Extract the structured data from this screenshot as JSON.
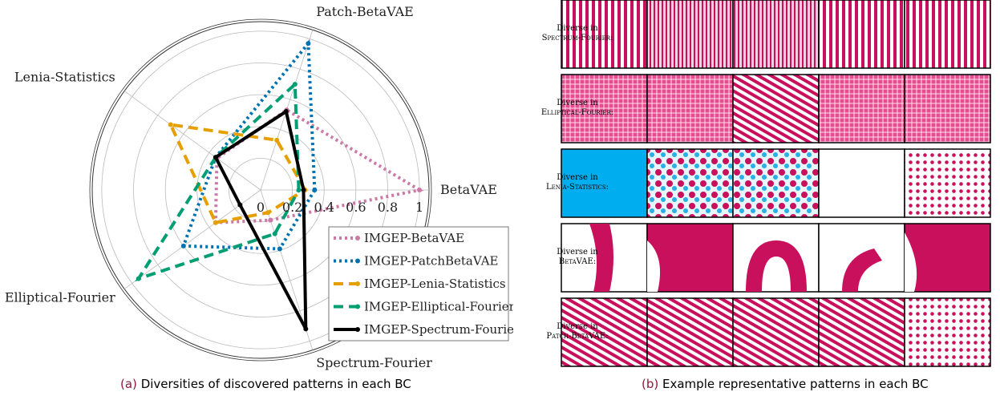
{
  "chart_data": {
    "type": "radar",
    "categories": [
      "BetaVAE",
      "Patch-BetaVAE",
      "Lenia-Statistics",
      "Elliptical-Fourier",
      "Spectrum-Fourier"
    ],
    "rlim": [
      0,
      1.06
    ],
    "rticks": [
      0,
      0.2,
      0.4,
      0.6,
      0.8,
      1
    ],
    "grid": true,
    "legend": "lower right",
    "series": [
      {
        "name": "IMGEP-BetaVAE",
        "color": "#cc79a7",
        "linestyle": "dotted",
        "values": [
          1.0,
          0.53,
          0.34,
          0.35,
          0.2
        ]
      },
      {
        "name": "IMGEP-PatchBetaVAE",
        "color": "#0072b2",
        "linestyle": "dotted",
        "values": [
          0.34,
          0.97,
          0.35,
          0.6,
          0.39
        ]
      },
      {
        "name": "IMGEP-Lenia-Statistics",
        "color": "#e69f00",
        "linestyle": "dashed",
        "values": [
          0.28,
          0.33,
          0.7,
          0.35,
          0.15
        ]
      },
      {
        "name": "IMGEP-Elliptical-Fourier",
        "color": "#009e73",
        "linestyle": "dashed",
        "values": [
          0.24,
          0.7,
          0.35,
          0.95,
          0.29
        ]
      },
      {
        "name": "IMGEP-Spectrum-Fourier",
        "color": "#000000",
        "linestyle": "solid",
        "values": [
          0.27,
          0.52,
          0.35,
          0.16,
          0.92
        ]
      }
    ]
  },
  "captions": [
    {
      "label": "(a)",
      "text": "Diversities of discovered patterns in each BC"
    },
    {
      "label": "(b)",
      "text": "Example representative patterns in each BC"
    }
  ],
  "panel_b": {
    "rows": [
      {
        "line1": "Diverse in",
        "line2": "Spectrum-Fourier:"
      },
      {
        "line1": "Diverse in",
        "line2": "Elliptical-Fourier:"
      },
      {
        "line1": "Diverse in",
        "line2": "Lenia-Statistics:"
      },
      {
        "line1": "Diverse in",
        "line2": "BetaVAE:"
      },
      {
        "line1": "Diverse in",
        "line2": "Patch-BetaVAE:"
      }
    ]
  }
}
